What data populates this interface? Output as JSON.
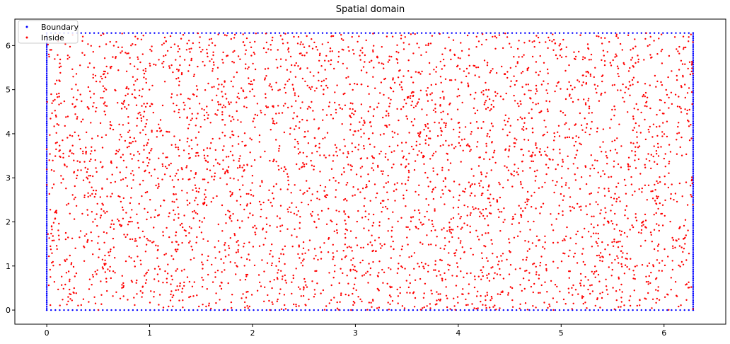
{
  "chart_data": {
    "type": "scatter",
    "title": "Spatial domain",
    "xlabel": "",
    "ylabel": "",
    "xlim": [
      -0.31,
      6.6
    ],
    "ylim": [
      -0.32,
      6.6
    ],
    "xticks": [
      0,
      1,
      2,
      3,
      4,
      5,
      6
    ],
    "yticks": [
      0,
      1,
      2,
      3,
      4,
      5,
      6
    ],
    "grid": false,
    "legend_position": "upper-left",
    "series": [
      {
        "name": "Boundary",
        "color": "#0000ff",
        "pattern": "boundary of the rectangle [0, 6.283] x [0, 6.283] sampled on a square perimeter",
        "x_range": [
          0,
          6.283
        ],
        "y_range": [
          0,
          6.283
        ],
        "points_per_side": 150
      },
      {
        "name": "Inside",
        "color": "#ff0000",
        "pattern": "uniform random points inside [0, 6.283] x [0, 6.283]",
        "x_range": [
          0,
          6.283
        ],
        "y_range": [
          0,
          6.283
        ],
        "count": 4000
      }
    ]
  }
}
